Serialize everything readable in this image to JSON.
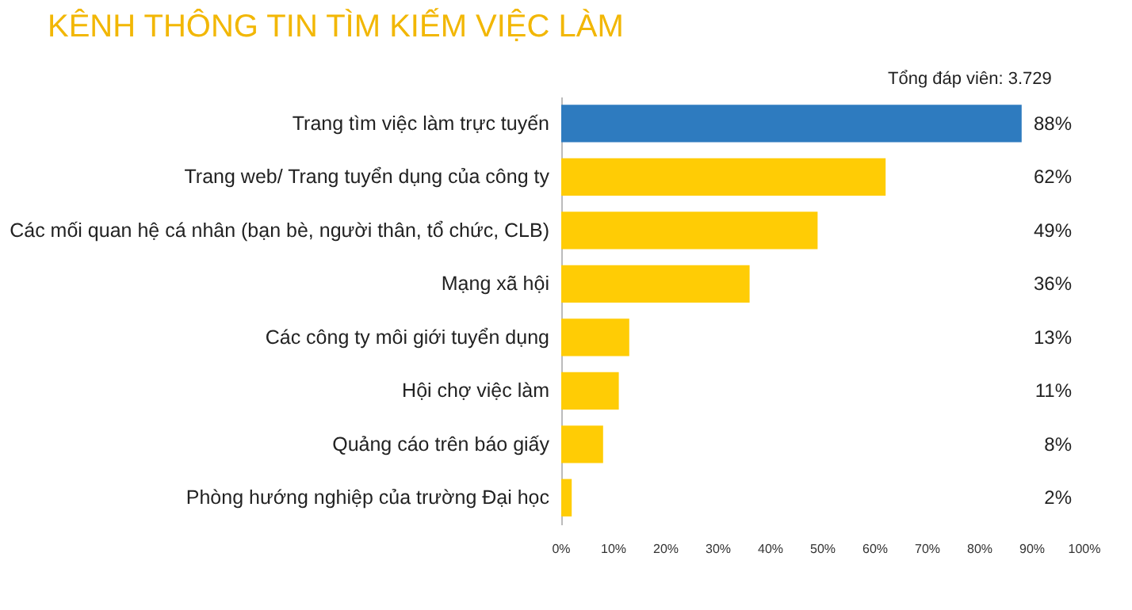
{
  "chart_data": {
    "type": "bar",
    "orientation": "horizontal",
    "title": "KÊNH THÔNG TIN TÌM KIẾM VIỆC LÀM",
    "annotations": [
      "Tổng đáp viên: 3.729"
    ],
    "categories": [
      "Trang tìm việc làm trực tuyến",
      "Trang web/ Trang tuyển dụng của công ty",
      "Các mối quan hệ cá nhân (bạn bè, người thân, tổ chức, CLB)",
      "Mạng xã hội",
      "Các công ty môi giới tuyển dụng",
      "Hội chợ việc làm",
      "Quảng cáo trên báo giấy",
      "Phòng hướng nghiệp của trường Đại học"
    ],
    "values": [
      88,
      62,
      49,
      36,
      13,
      11,
      8,
      2
    ],
    "colors": [
      "#2e7bbf",
      "#ffcc05",
      "#ffcc05",
      "#ffcc05",
      "#ffcc05",
      "#ffcc05",
      "#ffcc05",
      "#ffcc05"
    ],
    "value_labels": [
      "88%",
      "62%",
      "49%",
      "36%",
      "13%",
      "11%",
      "8%",
      "2%"
    ],
    "xlim": [
      0,
      100
    ],
    "xticks": [
      {
        "value": 0,
        "label": "0%"
      },
      {
        "value": 10,
        "label": "10%"
      },
      {
        "value": 20,
        "label": "20%"
      },
      {
        "value": 30,
        "label": "30%"
      },
      {
        "value": 40,
        "label": "40%"
      },
      {
        "value": 50,
        "label": "50%"
      },
      {
        "value": 60,
        "label": "60%"
      },
      {
        "value": 70,
        "label": "70%"
      },
      {
        "value": 80,
        "label": "80%"
      },
      {
        "value": 90,
        "label": "90%"
      },
      {
        "value": 100,
        "label": "100%"
      }
    ],
    "grid": false
  }
}
